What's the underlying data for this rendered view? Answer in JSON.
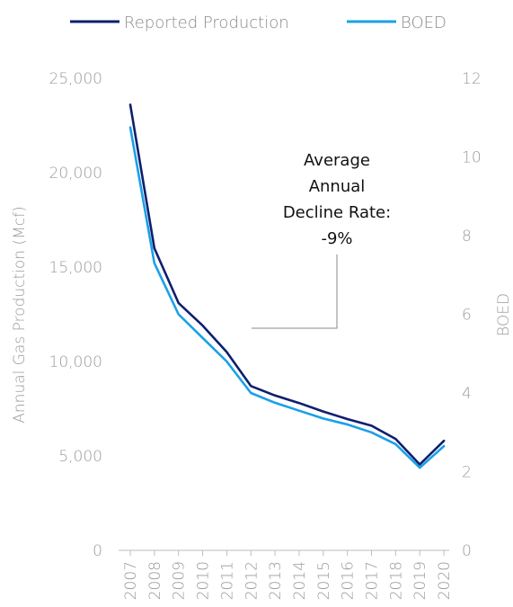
{
  "chart_data": {
    "type": "line",
    "x": [
      "2007",
      "2008",
      "2009",
      "2010",
      "2011",
      "2012",
      "2013",
      "2014",
      "2015",
      "2016",
      "2017",
      "2018",
      "2019",
      "2020"
    ],
    "series": [
      {
        "name": "Reported Production",
        "axis": "left",
        "color": "#0d1f6e",
        "values": [
          23600,
          16000,
          13100,
          11900,
          10500,
          8700,
          8200,
          7800,
          7350,
          6950,
          6600,
          5900,
          4550,
          5800
        ]
      },
      {
        "name": "BOED",
        "axis": "right",
        "color": "#1aa0e8",
        "values": [
          10.75,
          7.3,
          6.0,
          5.4,
          4.8,
          4.0,
          3.75,
          3.55,
          3.35,
          3.2,
          3.0,
          2.7,
          2.1,
          2.65
        ]
      }
    ],
    "ylabel": "Annual Gas Production (Mcf)",
    "ylabel_right": "BOED",
    "ylim": [
      0,
      25000
    ],
    "ylim_right": [
      0,
      12
    ],
    "yticks": [
      "0",
      "5,000",
      "10,000",
      "15,000",
      "20,000",
      "25,000"
    ],
    "yticks_right": [
      "0",
      "2",
      "4",
      "6",
      "8",
      "10",
      "12"
    ],
    "legend_position": "top",
    "grid": false,
    "annotation": {
      "lines": [
        "Average",
        "Annual",
        "Decline Rate:",
        "-9%"
      ]
    }
  }
}
